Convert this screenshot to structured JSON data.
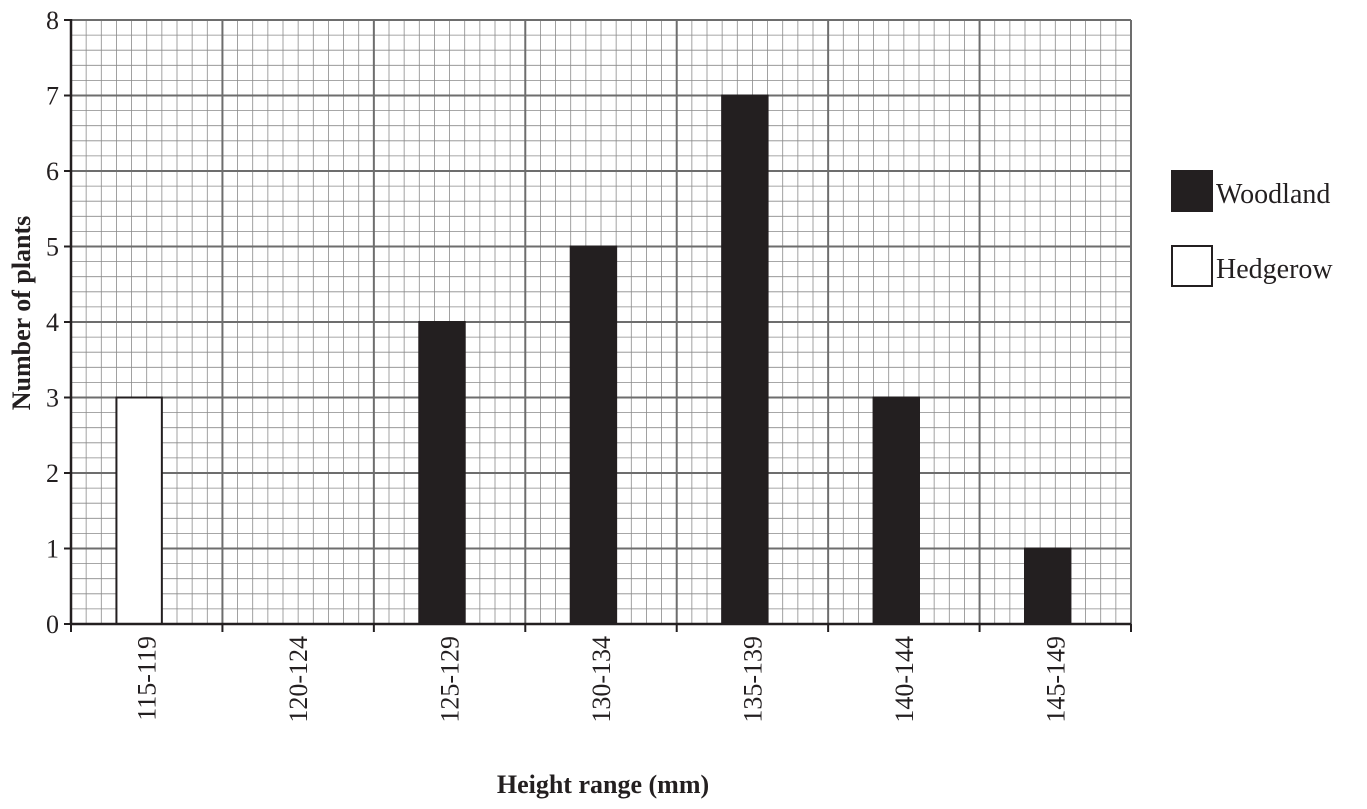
{
  "chart_data": {
    "type": "bar",
    "title": "",
    "xlabel": "Height range (mm)",
    "ylabel": "Number of plants",
    "categories": [
      "115-119",
      "120-124",
      "125-129",
      "130-134",
      "135-139",
      "140-144",
      "145-149"
    ],
    "series": [
      {
        "name": "Woodland",
        "values": [
          0,
          0,
          4,
          5,
          7,
          3,
          1
        ],
        "color": "#231f20"
      },
      {
        "name": "Hedgerow",
        "values": [
          3,
          0,
          0,
          0,
          0,
          0,
          0
        ],
        "color": "#ffffff"
      }
    ],
    "ylim": [
      0,
      8
    ],
    "yticks": [
      0,
      1,
      2,
      3,
      4,
      5,
      6,
      7,
      8
    ],
    "grid": true,
    "legend_position": "right"
  }
}
